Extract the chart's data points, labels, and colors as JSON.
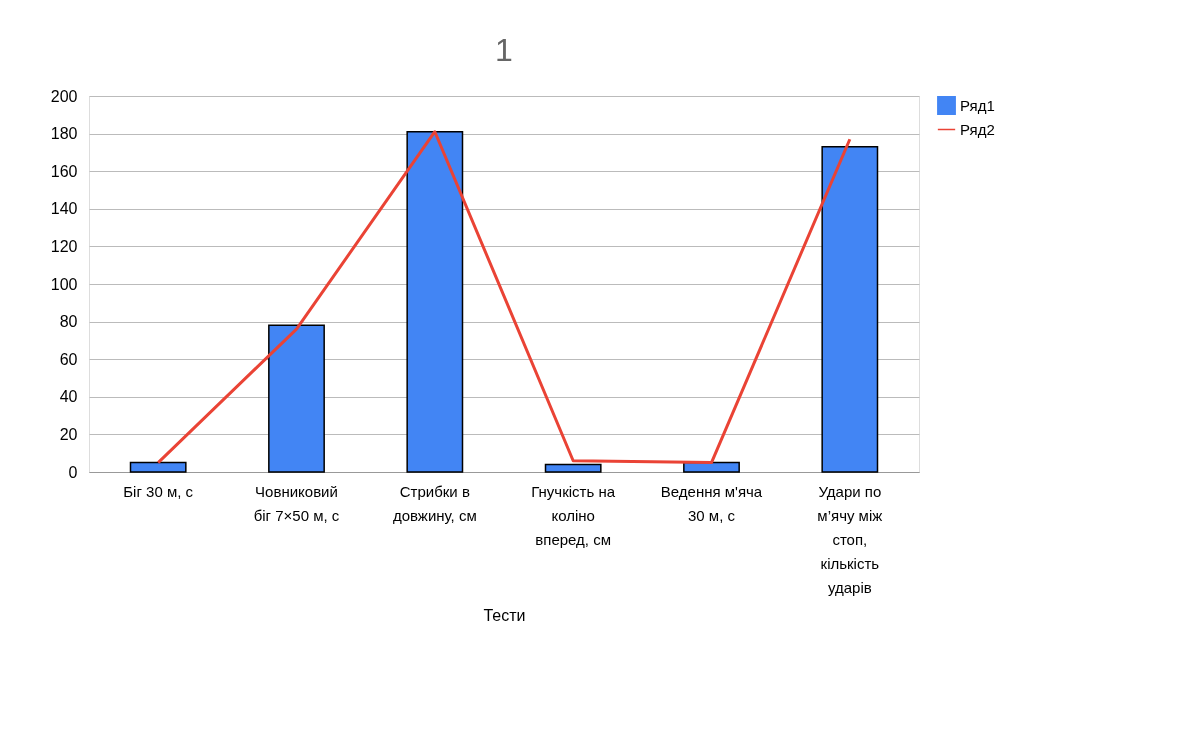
{
  "chart_data": {
    "type": "bar",
    "title": "1",
    "xlabel": "Тести",
    "categories": [
      "Біг 30 м, с",
      "Човниковий біг 7×50 м, с",
      "Стрибки в довжину, см",
      "Гнучкість на коліно вперед, см",
      "Ведення м'яча 30 м, с",
      "Удари по м’ячу між стоп, кількість ударів"
    ],
    "series": [
      {
        "name": "Ряд1",
        "color": "#4285f4",
        "values": [
          5,
          78,
          181,
          4,
          5,
          173
        ]
      },
      {
        "name": "Ряд2",
        "type": "line",
        "color": "#ea4335",
        "values": [
          5,
          76,
          181,
          6,
          5,
          177
        ]
      }
    ],
    "ylim": [
      0,
      200
    ],
    "yticks": [
      0,
      20,
      40,
      60,
      80,
      100,
      120,
      140,
      160,
      180,
      200
    ],
    "grid": "y",
    "legend": "right"
  }
}
